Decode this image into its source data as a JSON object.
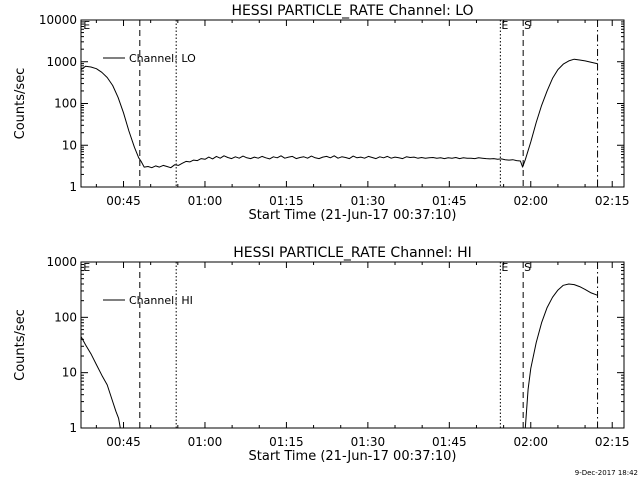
{
  "footer": {
    "timestamp": "9-Dec-2017 18:42"
  },
  "chart_data": [
    {
      "type": "line",
      "title": "HESSI PARTICLE_RATE Channel: LO",
      "xlabel": "Start Time (21-Jun-17 00:37:10)",
      "ylabel": "Counts/sec",
      "yscale": "log",
      "xlim_minutes": [
        37.17,
        137.17
      ],
      "ylim": [
        1,
        10000
      ],
      "x_ticks": [
        {
          "value": 45,
          "label": "00:45"
        },
        {
          "value": 60,
          "label": "01:00"
        },
        {
          "value": 75,
          "label": "01:15"
        },
        {
          "value": 90,
          "label": "01:30"
        },
        {
          "value": 105,
          "label": "01:45"
        },
        {
          "value": 120,
          "label": "02:00"
        },
        {
          "value": 135,
          "label": "02:15"
        }
      ],
      "y_ticks": [
        {
          "value": 1,
          "label": "1"
        },
        {
          "value": 10,
          "label": "10"
        },
        {
          "value": 100,
          "label": "100"
        },
        {
          "value": 1000,
          "label": "1000"
        },
        {
          "value": 10000,
          "label": "10000"
        }
      ],
      "legend": {
        "label": "Channel: LO",
        "placement": "top-left"
      },
      "markers": [
        {
          "x": 37.4,
          "label": "E",
          "style": "none"
        },
        {
          "x": 48.0,
          "label": "",
          "style": "dashed"
        },
        {
          "x": 54.7,
          "label": "",
          "style": "dotted"
        },
        {
          "x": 114.4,
          "label": "E",
          "style": "dotted"
        },
        {
          "x": 118.6,
          "label": "S",
          "style": "dashed"
        },
        {
          "x": 132.3,
          "label": "",
          "style": "dashdot"
        }
      ],
      "series": [
        {
          "name": "Channel: LO",
          "x": [
            37.17,
            38.0,
            39.0,
            40.0,
            41.0,
            42.0,
            43.0,
            44.0,
            45.0,
            46.0,
            47.0,
            47.8,
            48.2,
            48.8,
            49.5,
            50.2,
            50.9,
            51.6,
            52.3,
            53.0,
            53.7,
            54.4,
            55.1,
            55.8,
            56.5,
            57.2,
            57.9,
            58.6,
            59.3,
            60.0,
            60.7,
            61.4,
            62.1,
            62.8,
            63.5,
            64.2,
            64.9,
            65.6,
            66.3,
            67.0,
            67.7,
            68.4,
            69.1,
            69.8,
            70.5,
            71.2,
            71.9,
            72.6,
            73.3,
            74.0,
            74.7,
            75.4,
            76.1,
            76.8,
            77.5,
            78.2,
            78.9,
            79.6,
            80.3,
            81.0,
            81.7,
            82.4,
            83.1,
            83.8,
            84.5,
            85.2,
            85.9,
            86.6,
            87.3,
            88.0,
            88.7,
            89.4,
            90.1,
            90.8,
            91.5,
            92.2,
            92.9,
            93.6,
            94.3,
            95.0,
            95.7,
            96.4,
            97.1,
            97.8,
            98.5,
            99.2,
            99.9,
            100.6,
            101.3,
            102.0,
            102.7,
            103.4,
            104.1,
            104.8,
            105.5,
            106.2,
            106.9,
            107.6,
            108.3,
            109.0,
            109.7,
            110.4,
            111.1,
            111.8,
            112.5,
            113.2,
            113.9,
            114.6,
            115.3,
            116.0,
            116.7,
            117.4,
            118.1,
            118.5,
            119.0,
            120.0,
            121.0,
            122.0,
            123.0,
            124.0,
            125.0,
            126.0,
            127.0,
            128.0,
            129.0,
            130.0,
            131.0,
            132.3
          ],
          "values": [
            650,
            780,
            750,
            680,
            560,
            420,
            270,
            140,
            60,
            22,
            9,
            5,
            4.2,
            3.0,
            3.1,
            2.9,
            3.2,
            3.0,
            3.3,
            3.1,
            2.9,
            3.4,
            3.3,
            3.7,
            4.1,
            4.0,
            4.4,
            4.3,
            4.8,
            4.6,
            5.2,
            4.7,
            5.4,
            4.9,
            5.6,
            5.1,
            4.8,
            5.3,
            4.9,
            5.5,
            5.0,
            4.8,
            5.2,
            4.9,
            5.4,
            5.0,
            4.7,
            5.3,
            5.0,
            5.6,
            4.9,
            5.2,
            5.4,
            4.8,
            5.1,
            5.3,
            4.9,
            5.5,
            5.0,
            4.8,
            5.2,
            5.4,
            5.0,
            5.6,
            4.9,
            5.3,
            5.1,
            4.8,
            5.5,
            5.0,
            5.2,
            4.9,
            5.4,
            5.1,
            4.8,
            5.3,
            5.0,
            5.4,
            4.9,
            5.2,
            5.0,
            4.8,
            5.3,
            5.1,
            5.2,
            4.9,
            5.1,
            4.9,
            5.0,
            5.1,
            4.9,
            5.0,
            4.8,
            5.0,
            4.9,
            5.1,
            4.8,
            5.0,
            4.9,
            4.9,
            4.8,
            5.0,
            4.9,
            4.8,
            4.7,
            4.8,
            4.6,
            4.7,
            4.5,
            4.4,
            4.5,
            4.3,
            4.2,
            3.0,
            4.5,
            12,
            35,
            90,
            200,
            400,
            650,
            880,
            1050,
            1150,
            1100,
            1050,
            980,
            900
          ]
        }
      ]
    },
    {
      "type": "line",
      "title": "HESSI PARTICLE_RATE Channel: HI",
      "xlabel": "Start Time (21-Jun-17 00:37:10)",
      "ylabel": "Counts/sec",
      "yscale": "log",
      "xlim_minutes": [
        37.17,
        137.17
      ],
      "ylim": [
        1,
        1000
      ],
      "x_ticks": [
        {
          "value": 45,
          "label": "00:45"
        },
        {
          "value": 60,
          "label": "01:00"
        },
        {
          "value": 75,
          "label": "01:15"
        },
        {
          "value": 90,
          "label": "01:30"
        },
        {
          "value": 105,
          "label": "01:45"
        },
        {
          "value": 120,
          "label": "02:00"
        },
        {
          "value": 135,
          "label": "02:15"
        }
      ],
      "y_ticks": [
        {
          "value": 1,
          "label": "1"
        },
        {
          "value": 10,
          "label": "10"
        },
        {
          "value": 100,
          "label": "100"
        },
        {
          "value": 1000,
          "label": "1000"
        }
      ],
      "legend": {
        "label": "Channel: HI",
        "placement": "top-left"
      },
      "markers": [
        {
          "x": 37.4,
          "label": "E",
          "style": "none"
        },
        {
          "x": 48.0,
          "label": "",
          "style": "dashed"
        },
        {
          "x": 54.7,
          "label": "",
          "style": "dotted"
        },
        {
          "x": 114.4,
          "label": "E",
          "style": "dotted"
        },
        {
          "x": 118.6,
          "label": "S",
          "style": "dashed"
        },
        {
          "x": 132.3,
          "label": "",
          "style": "dashdot"
        }
      ],
      "series": [
        {
          "name": "Channel: HI",
          "x": [
            37.17,
            38.0,
            39.0,
            40.0,
            41.0,
            42.0,
            43.0,
            43.6,
            44.1,
            44.4,
            119.0,
            119.5,
            120.0,
            121.0,
            122.0,
            123.0,
            124.0,
            125.0,
            126.0,
            127.0,
            128.0,
            129.0,
            130.0,
            131.0,
            132.3
          ],
          "values": [
            45,
            32,
            22,
            14,
            9,
            6,
            3,
            2,
            1.5,
            1,
            1,
            5,
            12,
            35,
            80,
            150,
            230,
            310,
            380,
            400,
            390,
            360,
            320,
            280,
            250
          ]
        }
      ]
    }
  ]
}
